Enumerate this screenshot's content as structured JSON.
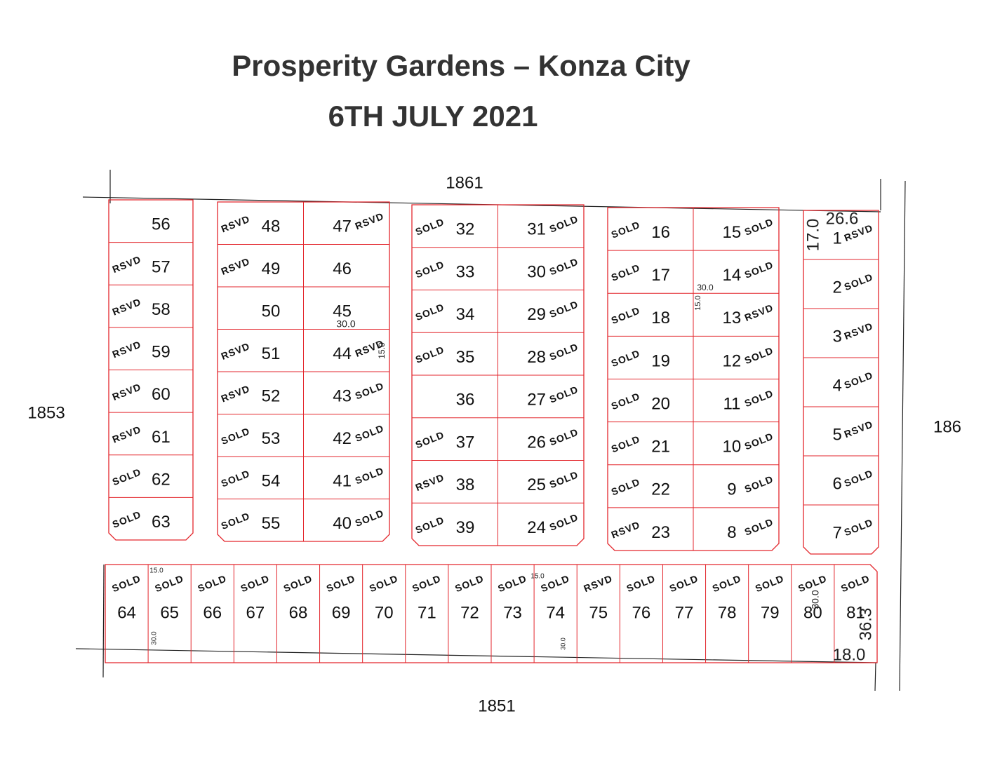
{
  "title": "Prosperity Gardens – Konza City",
  "date": "6TH JULY 2021",
  "roads": {
    "north": "1861",
    "west": "1853",
    "east": "186",
    "south": "1851"
  },
  "status_colors": {
    "SOLD": "#2e3192",
    "RSVD": "#00965a"
  },
  "blocks": [
    {
      "plots": [
        {
          "number": "56"
        },
        {
          "number": "57",
          "status": "RSVD"
        },
        {
          "number": "58",
          "status": "RSVD"
        },
        {
          "number": "59",
          "status": "RSVD"
        },
        {
          "number": "60",
          "status": "RSVD"
        },
        {
          "number": "61",
          "status": "RSVD"
        },
        {
          "number": "62",
          "status": "SOLD"
        },
        {
          "number": "63",
          "status": "SOLD"
        }
      ]
    },
    {
      "plots": [
        {
          "number": "48",
          "status": "RSVD"
        },
        {
          "number": "49",
          "status": "RSVD"
        },
        {
          "number": "50"
        },
        {
          "number": "51",
          "status": "RSVD"
        },
        {
          "number": "52",
          "status": "RSVD"
        },
        {
          "number": "53",
          "status": "SOLD"
        },
        {
          "number": "54",
          "status": "SOLD"
        },
        {
          "number": "55",
          "status": "SOLD"
        },
        {
          "number": "47",
          "status": "RSVD"
        },
        {
          "number": "46"
        },
        {
          "number": "45"
        },
        {
          "number": "44",
          "status": "RSVD"
        },
        {
          "number": "43",
          "status": "SOLD"
        },
        {
          "number": "42",
          "status": "SOLD"
        },
        {
          "number": "41",
          "status": "SOLD"
        },
        {
          "number": "40",
          "status": "SOLD"
        }
      ],
      "dimensions": [
        "30.0",
        "15.0"
      ]
    },
    {
      "plots": [
        {
          "number": "32",
          "status": "SOLD"
        },
        {
          "number": "33",
          "status": "SOLD"
        },
        {
          "number": "34",
          "status": "SOLD"
        },
        {
          "number": "35",
          "status": "SOLD"
        },
        {
          "number": "36"
        },
        {
          "number": "37",
          "status": "SOLD"
        },
        {
          "number": "38",
          "status": "RSVD"
        },
        {
          "number": "39",
          "status": "SOLD"
        },
        {
          "number": "31",
          "status": "SOLD"
        },
        {
          "number": "30",
          "status": "SOLD"
        },
        {
          "number": "29",
          "status": "SOLD"
        },
        {
          "number": "28",
          "status": "SOLD"
        },
        {
          "number": "27",
          "status": "SOLD"
        },
        {
          "number": "26",
          "status": "SOLD"
        },
        {
          "number": "25",
          "status": "SOLD"
        },
        {
          "number": "24",
          "status": "SOLD"
        }
      ]
    },
    {
      "plots": [
        {
          "number": "16",
          "status": "SOLD"
        },
        {
          "number": "17",
          "status": "SOLD"
        },
        {
          "number": "18",
          "status": "SOLD"
        },
        {
          "number": "19",
          "status": "SOLD"
        },
        {
          "number": "20",
          "status": "SOLD"
        },
        {
          "number": "21",
          "status": "SOLD"
        },
        {
          "number": "22",
          "status": "SOLD"
        },
        {
          "number": "23",
          "status": "RSVD"
        },
        {
          "number": "15",
          "status": "SOLD"
        },
        {
          "number": "14",
          "status": "SOLD"
        },
        {
          "number": "13",
          "status": "RSVD"
        },
        {
          "number": "12",
          "status": "SOLD"
        },
        {
          "number": "11",
          "status": "SOLD"
        },
        {
          "number": "10",
          "status": "SOLD"
        },
        {
          "number": "9",
          "status": "SOLD"
        },
        {
          "number": "8",
          "status": "SOLD"
        }
      ],
      "dimensions": [
        "30.0",
        "15.0"
      ]
    },
    {
      "plots": [
        {
          "number": "1",
          "status": "RSVD"
        },
        {
          "number": "2",
          "status": "SOLD"
        },
        {
          "number": "3",
          "status": "RSVD"
        },
        {
          "number": "4",
          "status": "SOLD"
        },
        {
          "number": "5",
          "status": "RSVD"
        },
        {
          "number": "6",
          "status": "SOLD"
        },
        {
          "number": "7",
          "status": "SOLD"
        }
      ],
      "dimensions": [
        "26.6",
        "17.0"
      ]
    },
    {
      "plots": [
        {
          "number": "64",
          "status": "SOLD"
        },
        {
          "number": "65",
          "status": "SOLD"
        },
        {
          "number": "66",
          "status": "SOLD"
        },
        {
          "number": "67",
          "status": "SOLD"
        },
        {
          "number": "68",
          "status": "SOLD"
        },
        {
          "number": "69",
          "status": "SOLD"
        },
        {
          "number": "70",
          "status": "SOLD"
        },
        {
          "number": "71",
          "status": "SOLD"
        },
        {
          "number": "72",
          "status": "SOLD"
        },
        {
          "number": "73",
          "status": "SOLD"
        },
        {
          "number": "74",
          "status": "SOLD"
        },
        {
          "number": "75",
          "status": "RSVD"
        },
        {
          "number": "76",
          "status": "SOLD"
        },
        {
          "number": "77",
          "status": "SOLD"
        },
        {
          "number": "78",
          "status": "SOLD"
        },
        {
          "number": "79",
          "status": "SOLD"
        },
        {
          "number": "80",
          "status": "SOLD"
        },
        {
          "number": "81",
          "status": "SOLD"
        }
      ],
      "dimensions": [
        "15.0",
        "30.0",
        "15.0",
        "30.0",
        "30.0",
        "36.3",
        "18.0"
      ]
    }
  ]
}
